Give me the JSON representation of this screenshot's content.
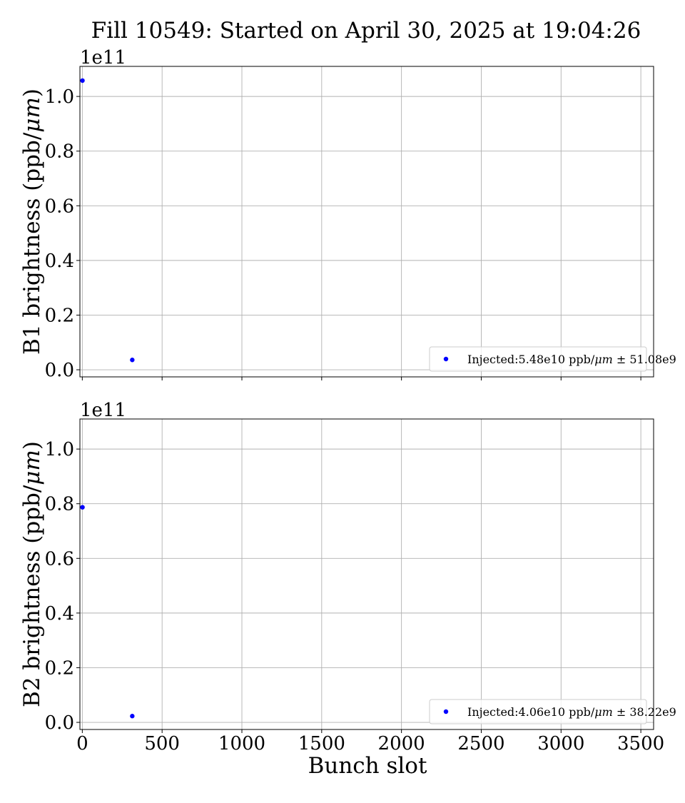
{
  "figure": {
    "title": "Fill 10549: Started on April 30, 2025 at 19:04:26"
  },
  "colors": {
    "marker": "#0000ff",
    "grid": "#b0b0b0",
    "axes": "#000000",
    "legend_border": "#cccccc"
  },
  "chart_data": [
    {
      "type": "scatter",
      "title": "",
      "ylabel_prefix": "B1 brightness (ppb/",
      "ylabel_unit": "μm",
      "ylabel_suffix": ")",
      "xlabel": "",
      "xlim": [
        -15,
        3580
      ],
      "ylim": [
        -2600000000.0,
        111000000000.0
      ],
      "offset_text": "1e11",
      "xticks": [
        0,
        500,
        1000,
        1500,
        2000,
        2500,
        3000,
        3500
      ],
      "show_xtick_labels": false,
      "yticks": [
        0,
        20000000000.0,
        40000000000.0,
        60000000000.0,
        80000000000.0,
        100000000000.0
      ],
      "ytick_labels": [
        "0.0",
        "0.2",
        "0.4",
        "0.6",
        "0.8",
        "1.0"
      ],
      "grid": true,
      "legend_position": "lower right",
      "series": [
        {
          "name": "Injected:5.48e10 ppb/μm ± 51.08e9",
          "legend_prefix": "Injected:5.48e10 ppb/",
          "legend_unit": "μm",
          "legend_suffix": " ± 51.08e9",
          "color": "#0000ff",
          "x": [
            1,
            313
          ],
          "y": [
            105800000000.0,
            3600000000.0
          ]
        }
      ]
    },
    {
      "type": "scatter",
      "title": "",
      "ylabel_prefix": "B2 brightness (ppb/",
      "ylabel_unit": "μm",
      "ylabel_suffix": ")",
      "xlabel": "Bunch slot",
      "xlim": [
        -15,
        3580
      ],
      "ylim": [
        -2600000000.0,
        111000000000.0
      ],
      "offset_text": "1e11",
      "xticks": [
        0,
        500,
        1000,
        1500,
        2000,
        2500,
        3000,
        3500
      ],
      "xtick_labels": [
        "0",
        "500",
        "1000",
        "1500",
        "2000",
        "2500",
        "3000",
        "3500"
      ],
      "show_xtick_labels": true,
      "yticks": [
        0,
        20000000000.0,
        40000000000.0,
        60000000000.0,
        80000000000.0,
        100000000000.0
      ],
      "ytick_labels": [
        "0.0",
        "0.2",
        "0.4",
        "0.6",
        "0.8",
        "1.0"
      ],
      "grid": true,
      "legend_position": "lower right",
      "series": [
        {
          "name": "Injected:4.06e10 ppb/μm ± 38.22e9",
          "legend_prefix": "Injected:4.06e10 ppb/",
          "legend_unit": "μm",
          "legend_suffix": " ± 38.22e9",
          "color": "#0000ff",
          "x": [
            1,
            313
          ],
          "y": [
            78700000000.0,
            2300000000.0
          ]
        }
      ]
    }
  ]
}
